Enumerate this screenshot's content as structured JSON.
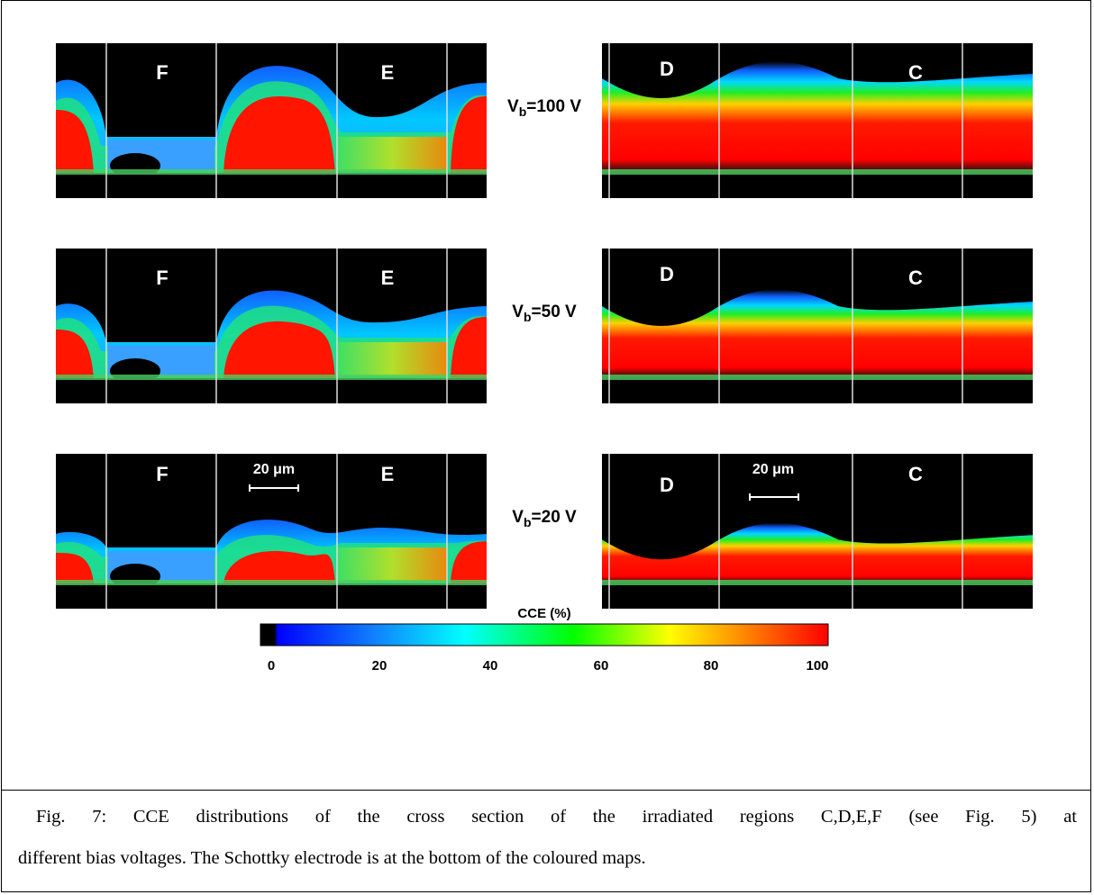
{
  "figure": {
    "panels": [
      {
        "bias_label": "V",
        "bias_sub": "b",
        "bias_value": "=100 V",
        "left_regions": [
          "F",
          "E"
        ],
        "right_regions": [
          "D",
          "C"
        ],
        "scale_bar": ""
      },
      {
        "bias_label": "V",
        "bias_sub": "b",
        "bias_value": "=50 V",
        "left_regions": [
          "F",
          "E"
        ],
        "right_regions": [
          "D",
          "C"
        ],
        "scale_bar": ""
      },
      {
        "bias_label": "V",
        "bias_sub": "b",
        "bias_value": "=20 V",
        "left_regions": [
          "F",
          "E"
        ],
        "right_regions": [
          "D",
          "C"
        ],
        "scale_bar": "20 μm"
      }
    ],
    "colorbar": {
      "title": "CCE (%)",
      "ticks": [
        "0",
        "20",
        "40",
        "60",
        "80",
        "100"
      ],
      "colors": [
        "#000000",
        "#0000ff",
        "#00ffff",
        "#00ff00",
        "#ffff00",
        "#ff0000"
      ]
    }
  },
  "caption": {
    "line1": "Fig. 7: CCE distributions of the cross section of the irradiated regions C,D,E,F (see Fig. 5) at",
    "line2": "different bias voltages. The Schottky electrode is at the bottom of the coloured maps."
  }
}
